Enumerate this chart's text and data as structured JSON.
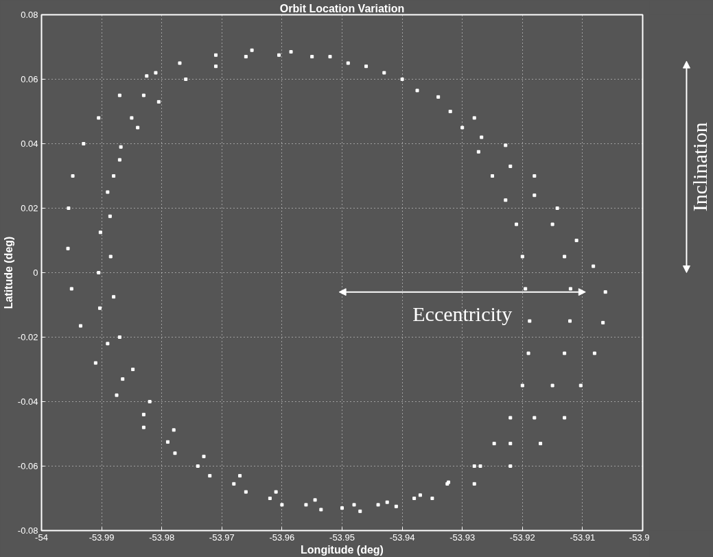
{
  "chart_data": {
    "type": "scatter",
    "title": "Orbit Location Variation",
    "xlabel": "Longitude (deg)",
    "ylabel": "Latitude (deg)",
    "xlim": [
      -54,
      -53.9
    ],
    "ylim": [
      -0.08,
      0.08
    ],
    "xticks": [
      -54,
      -53.99,
      -53.98,
      -53.97,
      -53.96,
      -53.95,
      -53.94,
      -53.93,
      -53.92,
      -53.91,
      -53.9
    ],
    "yticks": [
      -0.08,
      -0.06,
      -0.04,
      -0.02,
      0,
      0.02,
      0.04,
      0.06,
      0.08
    ],
    "grid": true,
    "marker": "square",
    "annotations": [
      "Eccentricity",
      "Inclination"
    ],
    "series": [
      {
        "color": "#ffffff",
        "x": [
          -53.9955,
          -53.9948,
          -53.993,
          -53.9905,
          -53.987,
          -53.9825,
          -53.977,
          -53.971,
          -53.965,
          -53.9585,
          -53.952,
          -53.946,
          -53.94,
          -53.934,
          -53.928,
          -53.9228,
          -53.918,
          -53.9142,
          -53.911,
          -53.9082,
          -53.9062,
          -53.9066,
          -53.908,
          -53.9103,
          -53.913,
          -53.917,
          -53.922,
          -53.928,
          -53.935,
          -53.941,
          -53.947,
          -53.9535,
          -53.96,
          -53.966,
          -53.972,
          -53.9778,
          -53.983,
          -53.9875,
          -53.991,
          -53.9935,
          -53.995,
          -53.9956
        ],
        "values": [
          0.02,
          0.03,
          0.04,
          0.048,
          0.055,
          0.061,
          0.065,
          0.0675,
          0.069,
          0.0685,
          0.067,
          0.064,
          0.06,
          0.0545,
          0.048,
          0.0395,
          0.03,
          0.02,
          0.01,
          0.002,
          -0.006,
          -0.0155,
          -0.025,
          -0.035,
          -0.045,
          -0.053,
          -0.06,
          -0.0655,
          -0.07,
          -0.0725,
          -0.074,
          -0.0735,
          -0.072,
          -0.068,
          -0.063,
          -0.056,
          -0.048,
          -0.038,
          -0.028,
          -0.0165,
          -0.005,
          0.0075
        ]
      },
      {
        "color": "#ffffff",
        "x": [
          -53.9905,
          -53.9902,
          -53.989,
          -53.987,
          -53.984,
          -53.9805,
          -53.976,
          -53.971,
          -53.966,
          -53.9605,
          -53.955,
          -53.949,
          -53.943,
          -53.9375,
          -53.932,
          -53.9268,
          -53.922,
          -53.918,
          -53.915,
          -53.913,
          -53.912,
          -53.9121,
          -53.913,
          -53.915,
          -53.918,
          -53.922,
          -53.927,
          -53.9325,
          -53.938,
          -53.944,
          -53.95,
          -53.956,
          -53.962,
          -53.968,
          -53.974,
          -53.979,
          -53.983,
          -53.9865,
          -53.989,
          -53.9903
        ],
        "values": [
          0.0,
          0.0125,
          0.025,
          0.035,
          0.045,
          0.053,
          0.06,
          0.064,
          0.067,
          0.0675,
          0.067,
          0.065,
          0.062,
          0.0565,
          0.05,
          0.042,
          0.033,
          0.024,
          0.015,
          0.005,
          -0.005,
          -0.015,
          -0.025,
          -0.035,
          -0.045,
          -0.053,
          -0.06,
          -0.0655,
          -0.07,
          -0.072,
          -0.073,
          -0.072,
          -0.07,
          -0.0655,
          -0.06,
          -0.0525,
          -0.044,
          -0.033,
          -0.022,
          -0.011
        ]
      },
      {
        "color": "#ffffff",
        "x": [
          -53.981,
          -53.983,
          -53.985,
          -53.9868,
          -53.988,
          -53.9886,
          -53.9885,
          -53.988,
          -53.987,
          -53.9848,
          -53.982,
          -53.978,
          -53.973,
          -53.967,
          -53.961,
          -53.9545,
          -53.948,
          -53.9425,
          -53.937,
          -53.9323,
          -53.928,
          -53.9247,
          -53.922,
          -53.92,
          -53.919,
          -53.9188,
          -53.9195,
          -53.92,
          -53.921,
          -53.9228,
          -53.925,
          -53.9273,
          -53.93
        ],
        "values": [
          0.062,
          0.055,
          0.048,
          0.039,
          0.03,
          0.0175,
          0.005,
          -0.0075,
          -0.02,
          -0.03,
          -0.04,
          -0.0488,
          -0.057,
          -0.063,
          -0.068,
          -0.0705,
          -0.072,
          -0.0712,
          -0.069,
          -0.065,
          -0.06,
          -0.053,
          -0.045,
          -0.035,
          -0.025,
          -0.015,
          -0.005,
          0.005,
          0.015,
          0.0225,
          0.03,
          0.0375,
          0.045
        ]
      }
    ]
  }
}
